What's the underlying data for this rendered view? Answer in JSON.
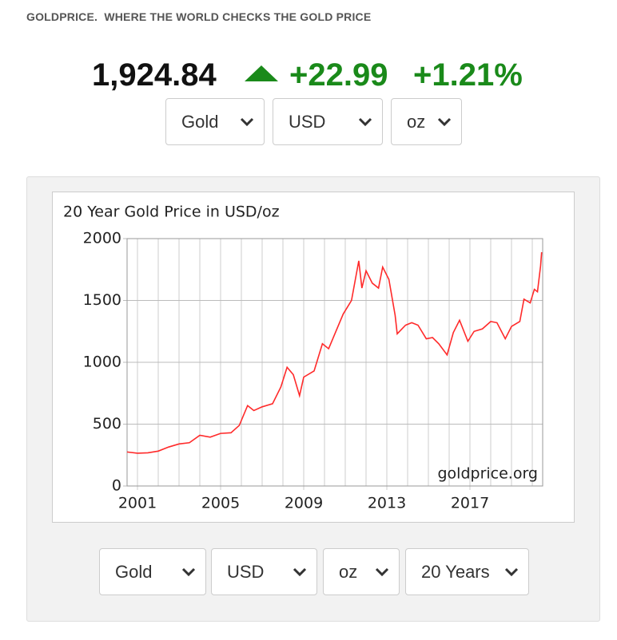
{
  "header": {
    "brand": "GOLDPRICE.",
    "tagline": "WHERE THE WORLD CHECKS THE GOLD PRICE"
  },
  "price": {
    "value": "1,924.84",
    "change": "+22.99",
    "change_percent": "+1.21%"
  },
  "top_selects": [
    "Gold",
    "USD",
    "oz"
  ],
  "bottom_selects": [
    "Gold",
    "USD",
    "oz",
    "20 Years"
  ],
  "chart_data": {
    "type": "line",
    "title": "20 Year Gold Price in USD/oz",
    "watermark": "goldprice.org",
    "color": "#ff2a2a",
    "title_color": "#ff2a2a",
    "x": [
      2000.5,
      2001.0,
      2001.5,
      2002.0,
      2002.5,
      2003.0,
      2003.5,
      2004.0,
      2004.5,
      2005.0,
      2005.5,
      2005.9,
      2006.3,
      2006.6,
      2007.0,
      2007.5,
      2007.9,
      2008.2,
      2008.5,
      2008.8,
      2009.0,
      2009.5,
      2009.9,
      2010.2,
      2010.5,
      2010.9,
      2011.3,
      2011.65,
      2011.8,
      2012.0,
      2012.3,
      2012.6,
      2012.8,
      2013.1,
      2013.4,
      2013.5,
      2013.9,
      2014.2,
      2014.5,
      2014.9,
      2015.2,
      2015.5,
      2015.9,
      2016.2,
      2016.5,
      2016.9,
      2017.2,
      2017.6,
      2018.0,
      2018.3,
      2018.7,
      2019.0,
      2019.4,
      2019.6,
      2019.9,
      2020.1,
      2020.25,
      2020.4,
      2020.45
    ],
    "values": [
      275,
      265,
      268,
      282,
      315,
      340,
      350,
      410,
      395,
      425,
      430,
      490,
      650,
      610,
      640,
      665,
      800,
      960,
      900,
      730,
      880,
      930,
      1150,
      1110,
      1230,
      1390,
      1500,
      1820,
      1600,
      1740,
      1640,
      1600,
      1770,
      1670,
      1380,
      1230,
      1300,
      1320,
      1300,
      1190,
      1200,
      1150,
      1060,
      1240,
      1340,
      1170,
      1250,
      1270,
      1330,
      1320,
      1190,
      1290,
      1330,
      1510,
      1480,
      1590,
      1570,
      1780,
      1890
    ],
    "xlim": [
      2000.5,
      2020.5
    ],
    "ylim": [
      0,
      2000
    ],
    "xticks": [
      2001,
      2005,
      2009,
      2013,
      2017
    ],
    "x_minor_ticks": [
      2002,
      2003,
      2004,
      2006,
      2007,
      2008,
      2010,
      2011,
      2012,
      2014,
      2015,
      2016,
      2018,
      2019,
      2020
    ],
    "yticks": [
      0,
      500,
      1000,
      1500,
      2000
    ],
    "grid": true
  }
}
